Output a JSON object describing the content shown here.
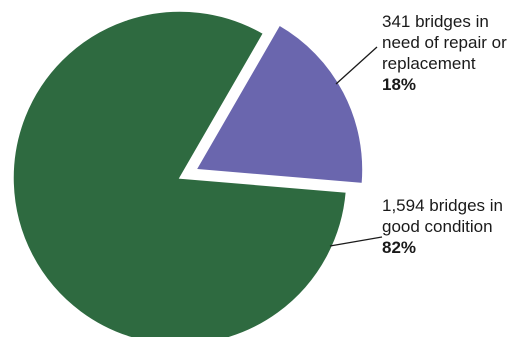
{
  "chart_data": {
    "type": "pie",
    "slices": [
      {
        "label_lines": [
          "341 bridges in",
          "need of repair or",
          "replacement"
        ],
        "percent": "18%",
        "count": 341,
        "value": 18,
        "color": "#6a66ae",
        "exploded": true
      },
      {
        "label_lines": [
          "1,594 bridges in",
          "good condition"
        ],
        "percent": "82%",
        "count": 1594,
        "value": 82,
        "color": "#2e6a40",
        "exploded": false
      }
    ]
  }
}
